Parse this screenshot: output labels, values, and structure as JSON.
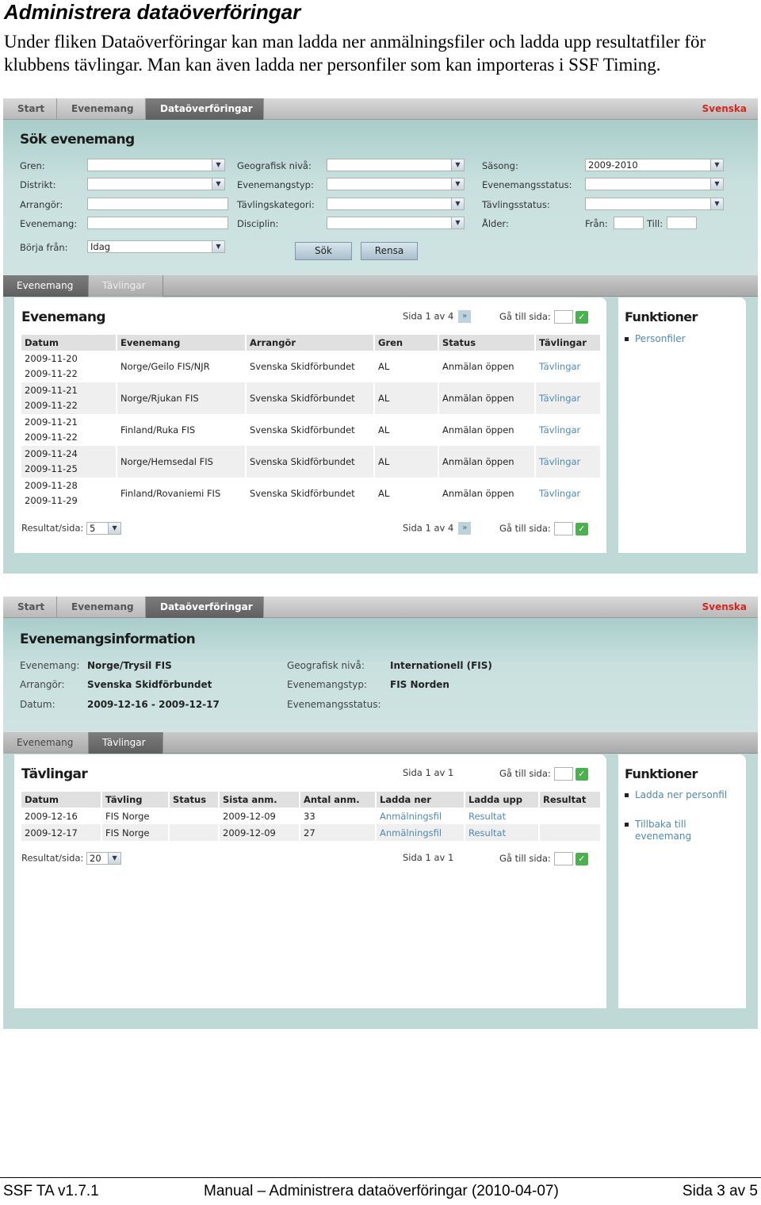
{
  "doc": {
    "title": "Administrera dataöverföringar",
    "intro": "Under fliken Dataöverföringar kan man ladda ner anmälningsfiler och ladda upp resultatfiler för klubbens tävlingar. Man kan även ladda ner personfiler som kan importeras i SSF Timing."
  },
  "nav": {
    "tabs": [
      "Start",
      "Evenemang",
      "Dataöverföringar"
    ],
    "active": "Dataöverföringar",
    "language": "Svenska"
  },
  "search": {
    "heading": "Sök evenemang",
    "labels": {
      "gren": "Gren:",
      "distrikt": "Distrikt:",
      "arrangor": "Arrangör:",
      "evenemang": "Evenemang:",
      "borja": "Börja från:",
      "geo": "Geografisk nivå:",
      "evtyp": "Evenemangstyp:",
      "kategori": "Tävlingskategori:",
      "disciplin": "Disciplin:",
      "sasong": "Säsong:",
      "evstatus": "Evenemangsstatus:",
      "tavstatus": "Tävlingsstatus:",
      "alder": "Ålder:",
      "fran": "Från:",
      "till": "Till:"
    },
    "values": {
      "sasong": "2009-2010",
      "borja": "Idag"
    },
    "buttons": {
      "search": "Sök",
      "clear": "Rensa"
    }
  },
  "tabs1": [
    "Evenemang",
    "Tävlingar"
  ],
  "events": {
    "heading": "Evenemang",
    "pager": {
      "page_text": "Sida 1 av 4",
      "goto_label": "Gå till sida:"
    },
    "columns": [
      "Datum",
      "Evenemang",
      "Arrangör",
      "Gren",
      "Status",
      "Tävlingar"
    ],
    "rows": [
      {
        "date1": "2009-11-20",
        "date2": "2009-11-22",
        "event": "Norge/Geilo FIS/NJR",
        "org": "Svenska Skidförbundet",
        "gren": "AL",
        "status": "Anmälan öppen",
        "link": "Tävlingar"
      },
      {
        "date1": "2009-11-21",
        "date2": "2009-11-22",
        "event": "Norge/Rjukan FIS",
        "org": "Svenska Skidförbundet",
        "gren": "AL",
        "status": "Anmälan öppen",
        "link": "Tävlingar"
      },
      {
        "date1": "2009-11-21",
        "date2": "2009-11-22",
        "event": "Finland/Ruka FIS",
        "org": "Svenska Skidförbundet",
        "gren": "AL",
        "status": "Anmälan öppen",
        "link": "Tävlingar"
      },
      {
        "date1": "2009-11-24",
        "date2": "2009-11-25",
        "event": "Norge/Hemsedal FIS",
        "org": "Svenska Skidförbundet",
        "gren": "AL",
        "status": "Anmälan öppen",
        "link": "Tävlingar"
      },
      {
        "date1": "2009-11-28",
        "date2": "2009-11-29",
        "event": "Finland/Rovaniemi FIS",
        "org": "Svenska Skidförbundet",
        "gren": "AL",
        "status": "Anmälan öppen",
        "link": "Tävlingar"
      }
    ],
    "per_page_label": "Resultat/sida:",
    "per_page": "5"
  },
  "functions1": {
    "heading": "Funktioner",
    "items": [
      "Personfiler"
    ]
  },
  "info": {
    "heading": "Evenemangsinformation",
    "labels": {
      "evenemang": "Evenemang:",
      "arrangor": "Arrangör:",
      "datum": "Datum:",
      "geo": "Geografisk nivå:",
      "evtyp": "Evenemangstyp:",
      "evstatus": "Evenemangsstatus:"
    },
    "values": {
      "evenemang": "Norge/Trysil FIS",
      "arrangor": "Svenska Skidförbundet",
      "datum": "2009-12-16 - 2009-12-17",
      "geo": "Internationell (FIS)",
      "evtyp": "FIS Norden",
      "evstatus": ""
    }
  },
  "tabs2": [
    "Evenemang",
    "Tävlingar"
  ],
  "competitions": {
    "heading": "Tävlingar",
    "pager": {
      "page_text": "Sida 1 av 1",
      "goto_label": "Gå till sida:"
    },
    "columns": [
      "Datum",
      "Tävling",
      "Status",
      "Sista anm.",
      "Antal anm.",
      "Ladda ner",
      "Ladda upp",
      "Resultat"
    ],
    "rows": [
      {
        "date": "2009-12-16",
        "comp": "FIS Norge",
        "status": "",
        "last": "2009-12-09",
        "count": "33",
        "down": "Anmälningsfil",
        "up": "Resultat",
        "result": ""
      },
      {
        "date": "2009-12-17",
        "comp": "FIS Norge",
        "status": "",
        "last": "2009-12-09",
        "count": "27",
        "down": "Anmälningsfil",
        "up": "Resultat",
        "result": ""
      }
    ],
    "per_page_label": "Resultat/sida:",
    "per_page": "20"
  },
  "functions2": {
    "heading": "Funktioner",
    "items": [
      "Ladda ner personfil",
      "Tillbaka till evenemang"
    ]
  },
  "footer": {
    "left": "SSF TA v1.7.1",
    "center": "Manual – Administrera dataöverföringar (2010-04-07)",
    "right": "Sida 3 av 5"
  }
}
